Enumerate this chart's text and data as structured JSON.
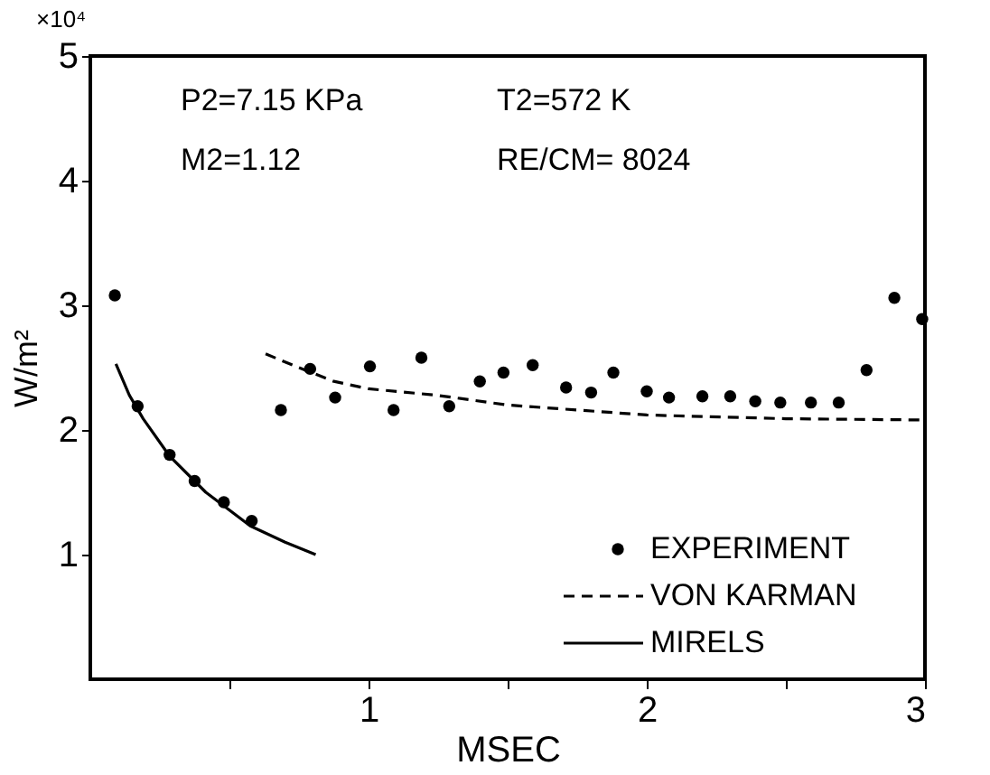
{
  "chart_data": {
    "type": "scatter",
    "xlabel": "MSEC",
    "ylabel": "W/m²",
    "annotations": [
      "×10⁴",
      "P2=7.15 KPa",
      "T2=572 K",
      "M2=1.12",
      "RE/CM= 8024"
    ],
    "xlim": [
      0,
      3
    ],
    "xticks": [
      {
        "value": 0.5,
        "label": null
      },
      1,
      {
        "value": 1.5,
        "label": null
      },
      2,
      {
        "value": 2.5,
        "label": null
      },
      3
    ],
    "ylim": [
      0,
      5
    ],
    "yticks": [
      1,
      2,
      3,
      4,
      5
    ],
    "grid": false,
    "legend": "bottom right",
    "series": [
      {
        "name": "EXPERIMENT",
        "marker": "circle",
        "color": "#000000",
        "x": [
          0.088,
          0.17,
          0.285,
          0.375,
          0.48,
          0.58,
          0.685,
          0.79,
          0.88,
          1.005,
          1.09,
          1.19,
          1.29,
          1.4,
          1.485,
          1.59,
          1.71,
          1.8,
          1.88,
          2.0,
          2.08,
          2.2,
          2.3,
          2.39,
          2.48,
          2.59,
          2.69,
          2.79,
          2.89,
          2.99
        ],
        "values": [
          3.08,
          2.19,
          1.8,
          1.59,
          1.42,
          1.27,
          2.16,
          2.49,
          2.26,
          2.51,
          2.16,
          2.58,
          2.19,
          2.39,
          2.46,
          2.52,
          2.34,
          2.3,
          2.46,
          2.31,
          2.26,
          2.27,
          2.27,
          2.23,
          2.22,
          2.22,
          2.22,
          2.48,
          3.06,
          2.89
        ]
      },
      {
        "name": "VON KARMAN",
        "type": "line",
        "line_style": "dashed",
        "color": "#000000",
        "x": [
          0.63,
          0.75,
          0.875,
          1.0,
          1.24,
          1.5,
          1.75,
          2.0,
          2.5,
          3.0
        ],
        "values": [
          2.61,
          2.5,
          2.39,
          2.33,
          2.28,
          2.2,
          2.16,
          2.12,
          2.09,
          2.08
        ]
      },
      {
        "name": "MIRELS",
        "type": "line",
        "line_style": "solid",
        "color": "#000000",
        "x": [
          0.092,
          0.14,
          0.19,
          0.285,
          0.415,
          0.575,
          0.7,
          0.81
        ],
        "values": [
          2.53,
          2.28,
          2.09,
          1.79,
          1.5,
          1.23,
          1.1,
          1.0
        ]
      }
    ]
  }
}
